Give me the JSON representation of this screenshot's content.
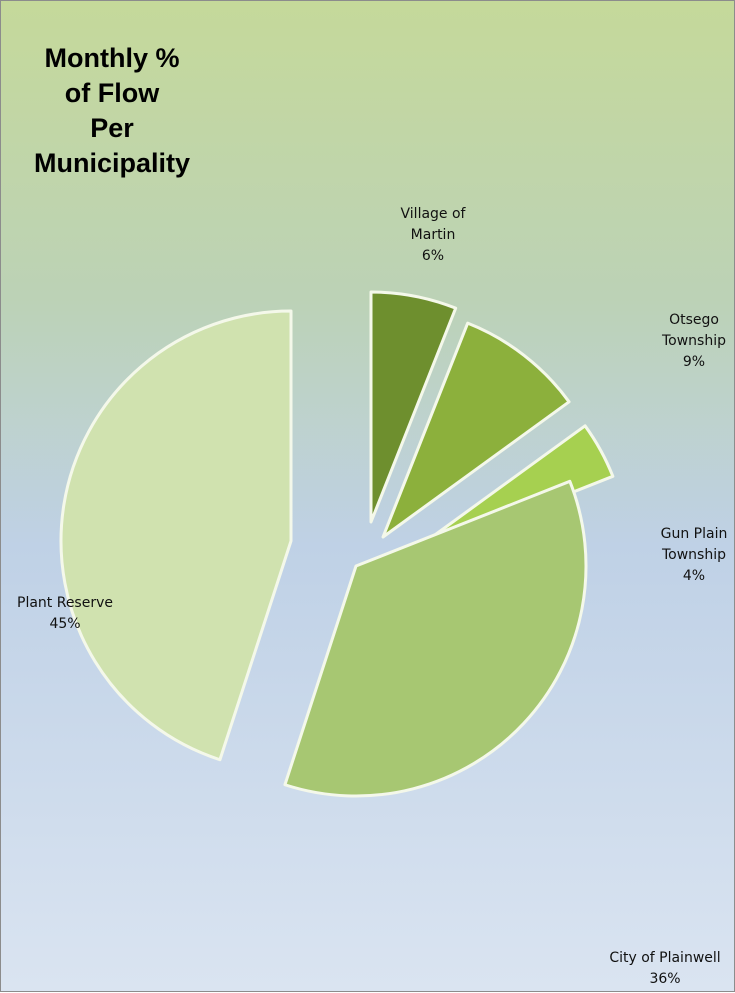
{
  "chart_data": {
    "type": "pie",
    "title_lines": [
      "Monthly %",
      "of Flow",
      "Per",
      "Municipality"
    ],
    "slices": [
      {
        "label_lines": [
          "Village of",
          "Martin"
        ],
        "value": 6,
        "value_label": "6%",
        "color": "#6e8f2e"
      },
      {
        "label_lines": [
          "Otsego",
          "Township"
        ],
        "value": 9,
        "value_label": "9%",
        "color": "#8cb03c"
      },
      {
        "label_lines": [
          "Gun Plain",
          "Township"
        ],
        "value": 4,
        "value_label": "4%",
        "color": "#a6d050"
      },
      {
        "label_lines": [
          "City of Plainwell"
        ],
        "value": 36,
        "value_label": "36%",
        "color": "#a7c772"
      },
      {
        "label_lines": [
          "Plant Reserve"
        ],
        "value": 45,
        "value_label": "45%",
        "color": "#d0e2af"
      }
    ],
    "legend": "none",
    "exploded": true
  }
}
